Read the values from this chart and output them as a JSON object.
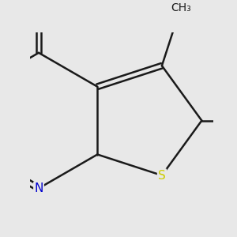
{
  "bg_color": "#e8e8e8",
  "bond_color": "#1a1a1a",
  "bond_width": 1.8,
  "atom_colors": {
    "N": "#0000cd",
    "S": "#cccc00",
    "O": "#ff0000",
    "C": "#1a1a1a",
    "H": "#2e8b57",
    "OH": "#2e8b57"
  },
  "font_size": 11,
  "fig_size": [
    3.0,
    3.0
  ],
  "dpi": 100
}
